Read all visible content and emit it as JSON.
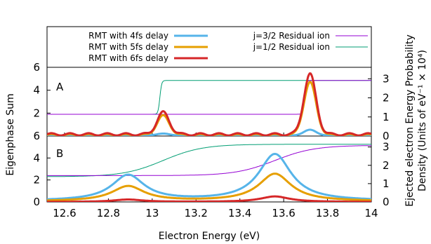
{
  "chart_data": {
    "type": "line",
    "xlabel": "Electron Energy (eV)",
    "ylabel_left": "Eigenphase Sum",
    "ylabel_right_line1": "Ejected electron Energy Probability",
    "ylabel_right_line2": "Density (Units of eV⁻¹ × 10⁴)",
    "xlim": [
      12.52,
      14.0
    ],
    "x_ticks": [
      "12.6",
      "12.8",
      "13",
      "13.2",
      "13.4",
      "13.6",
      "13.8",
      "14"
    ],
    "x_tick_values": [
      12.6,
      12.8,
      13.0,
      13.2,
      13.4,
      13.6,
      13.8,
      14.0
    ],
    "legend_placement": "top",
    "legend": [
      {
        "label": "RMT with 4fs delay",
        "color": "#56b4e9"
      },
      {
        "label": "RMT with 5fs delay",
        "color": "#e69f00"
      },
      {
        "label": "RMT with 6fs delay",
        "color": "#d62728"
      },
      {
        "label": "j=3/2 Residual ion",
        "color": "#9400d3"
      },
      {
        "label": "j=1/2 Residual ion",
        "color": "#009e73"
      }
    ],
    "panels": [
      {
        "label": "A",
        "left_ylim": [
          0,
          6
        ],
        "left_ticks": [
          "2",
          "4",
          "6"
        ],
        "left_tick_values": [
          2,
          4,
          6
        ],
        "right_ylim": [
          0,
          3.6
        ],
        "right_ticks": [
          "0",
          "1",
          "2",
          "3"
        ],
        "right_tick_values": [
          0,
          1,
          2,
          3
        ],
        "j12": {
          "low": 1.9,
          "high": 4.85,
          "center": 13.035,
          "width": 0.004
        },
        "j32": {
          "low": 1.9,
          "high": 4.85,
          "center": 13.695,
          "width": 0.004
        },
        "rmt": [
          {
            "name": "RMT with 4fs delay",
            "peaks": [
              [
                13.05,
                0.1
              ],
              [
                13.72,
                0.3
              ]
            ],
            "baseline": 0.03,
            "ripple": 0.0
          },
          {
            "name": "RMT with 5fs delay",
            "peaks": [
              [
                13.05,
                1.0
              ],
              [
                13.72,
                2.75
              ]
            ],
            "baseline": 0.02,
            "ripple": 0.08
          },
          {
            "name": "RMT with 6fs delay",
            "peaks": [
              [
                13.05,
                1.15
              ],
              [
                13.72,
                3.15
              ]
            ],
            "baseline": 0.03,
            "ripple": 0.12
          }
        ]
      },
      {
        "label": "B",
        "left_ylim": [
          0,
          6
        ],
        "left_ticks": [
          "0",
          "2",
          "4",
          "6"
        ],
        "left_tick_values": [
          0,
          2,
          4,
          6
        ],
        "right_ylim": [
          0,
          3.6
        ],
        "right_ticks": [
          "0",
          "1",
          "2",
          "3"
        ],
        "right_tick_values": [
          0,
          1,
          2,
          3
        ],
        "j12": {
          "low": 2.3,
          "high": 5.25,
          "center": 13.05,
          "width": 0.09
        },
        "j32": {
          "low": 2.4,
          "high": 5.15,
          "center": 13.56,
          "width": 0.09
        },
        "rmt": [
          {
            "name": "RMT with 4fs delay",
            "peaks": [
              [
                12.89,
                1.4
              ],
              [
                13.56,
                2.55
              ]
            ],
            "gamma": 0.09,
            "baseline": 0.05
          },
          {
            "name": "RMT with 5fs delay",
            "peaks": [
              [
                12.89,
                0.82
              ],
              [
                13.56,
                1.5
              ]
            ],
            "gamma": 0.09,
            "baseline": 0.03
          },
          {
            "name": "RMT with 6fs delay",
            "peaks": [
              [
                12.89,
                0.13
              ],
              [
                13.56,
                0.3
              ]
            ],
            "gamma": 0.08,
            "baseline": 0.0
          }
        ]
      }
    ]
  }
}
